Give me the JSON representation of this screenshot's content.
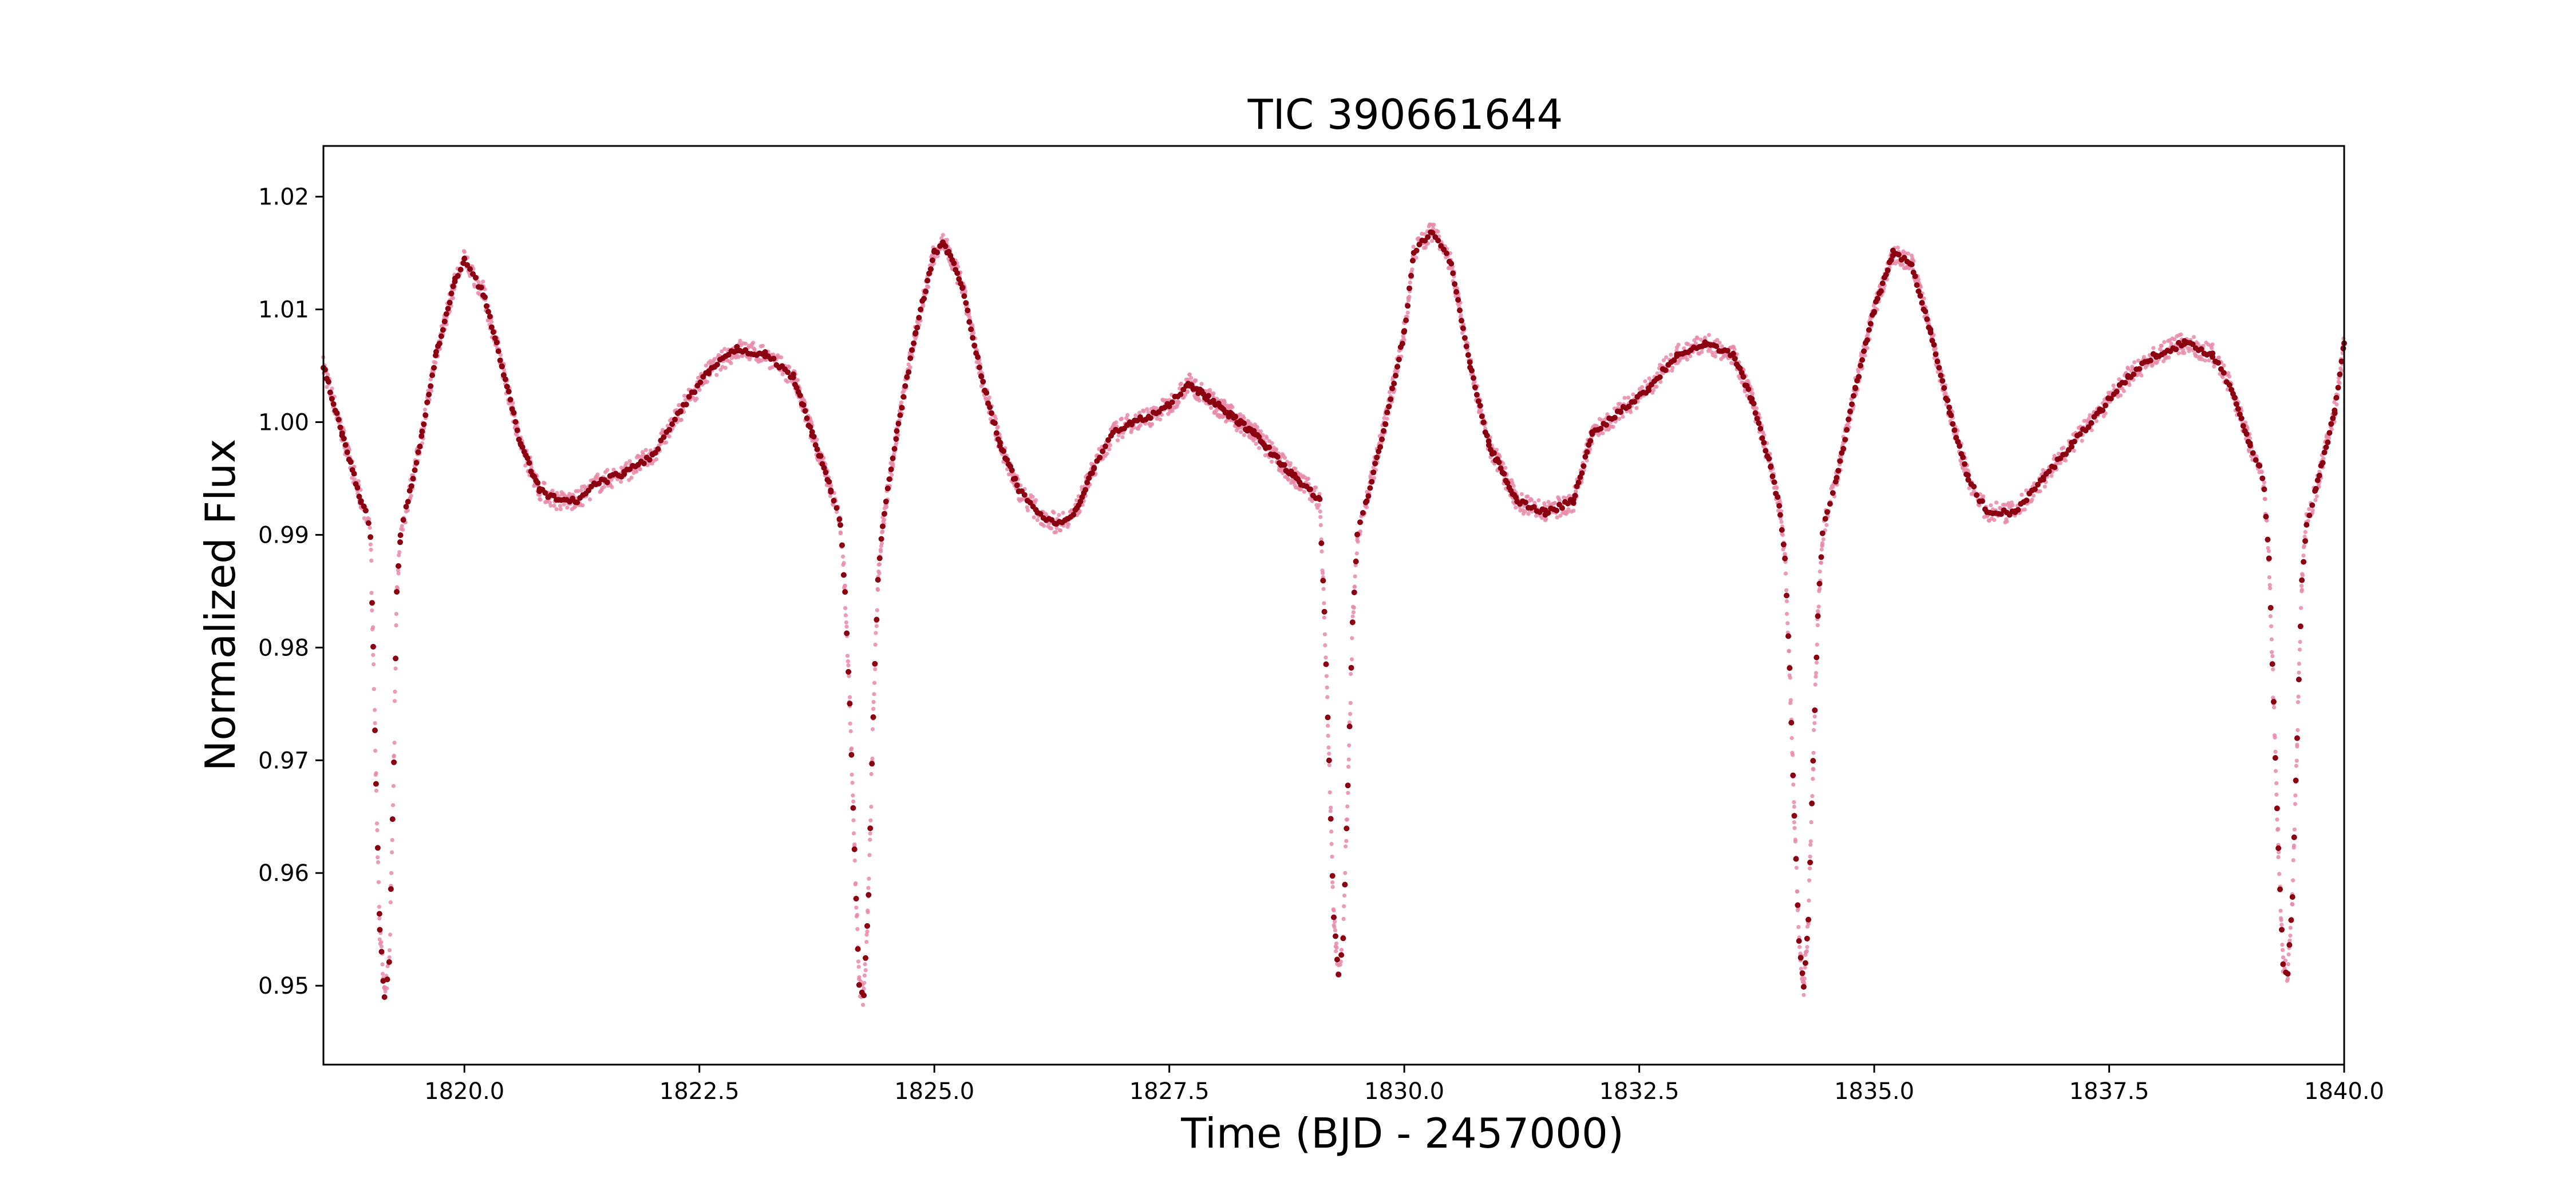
{
  "chart_data": {
    "type": "scatter",
    "title": "TIC 390661644",
    "xlabel": "Time (BJD - 2457000)",
    "ylabel": "Normalized Flux",
    "xlim": [
      1818.5,
      1840.0
    ],
    "ylim": [
      0.943,
      1.0245
    ],
    "xticks": [
      1820.0,
      1822.5,
      1825.0,
      1827.5,
      1830.0,
      1832.5,
      1835.0,
      1837.5,
      1840.0
    ],
    "xtick_labels": [
      "1820.0",
      "1822.5",
      "1825.0",
      "1827.5",
      "1830.0",
      "1832.5",
      "1835.0",
      "1837.5",
      "1840.0"
    ],
    "yticks": [
      0.95,
      0.96,
      0.97,
      0.98,
      0.99,
      1.0,
      1.01,
      1.02
    ],
    "ytick_labels": [
      "0.95",
      "0.96",
      "0.97",
      "0.98",
      "0.99",
      "1.00",
      "1.01",
      "1.02"
    ],
    "grid": false,
    "colors": {
      "raw": "#e88aa8",
      "binned": "#8b0010",
      "axes": "#000000"
    },
    "series": [
      {
        "x": [
          1818.5,
          1818.7,
          1818.9,
          1818.95,
          1819.0,
          1819.03,
          1819.06,
          1819.1,
          1819.15,
          1819.2,
          1819.25,
          1819.28,
          1819.32,
          1819.4,
          1819.55,
          1819.7,
          1819.9,
          1820.0,
          1820.2,
          1820.4,
          1820.6,
          1820.8,
          1821.0,
          1821.2,
          1821.4,
          1821.7,
          1822.0,
          1822.3,
          1822.6,
          1822.9,
          1823.2,
          1823.5,
          1823.7,
          1823.9,
          1824.0,
          1824.05,
          1824.1,
          1824.15,
          1824.2,
          1824.25,
          1824.3,
          1824.35,
          1824.4,
          1824.45,
          1824.6,
          1824.8,
          1825.0,
          1825.1,
          1825.3,
          1825.5,
          1825.7,
          1825.9,
          1826.1,
          1826.3,
          1826.5,
          1826.7,
          1826.9,
          1827.1,
          1827.3,
          1827.5,
          1827.7,
          1828.4,
          1828.9,
          1829.0,
          1829.1,
          1829.15,
          1829.2,
          1829.25,
          1829.3,
          1829.35,
          1829.4,
          1829.45,
          1829.5,
          1829.6,
          1829.8,
          1830.0,
          1830.1,
          1830.3,
          1830.5,
          1830.7,
          1830.9,
          1831.2,
          1831.5,
          1831.8,
          1832.0,
          1832.3,
          1832.6,
          1832.9,
          1833.2,
          1833.5,
          1833.7,
          1833.9,
          1834.0,
          1834.05,
          1834.1,
          1834.15,
          1834.2,
          1834.25,
          1834.3,
          1834.35,
          1834.4,
          1834.45,
          1834.5,
          1834.6,
          1834.8,
          1835.0,
          1835.2,
          1835.4,
          1835.6,
          1835.8,
          1836.0,
          1836.2,
          1836.5,
          1836.8,
          1837.1,
          1837.4,
          1837.7,
          1838.0,
          1838.3,
          1838.6,
          1838.8,
          1839.0,
          1839.1,
          1839.15,
          1839.2,
          1839.25,
          1839.3,
          1839.35,
          1839.4,
          1839.45,
          1839.5,
          1839.55,
          1839.6,
          1839.7,
          1839.9,
          1840.0
        ],
        "y": [
          1.005,
          0.999,
          0.993,
          0.992,
          0.99,
          0.98,
          0.968,
          0.955,
          0.949,
          0.952,
          0.97,
          0.985,
          0.99,
          0.993,
          0.999,
          1.006,
          1.0125,
          1.0145,
          1.0115,
          1.005,
          0.998,
          0.994,
          0.993,
          0.993,
          0.9945,
          0.9955,
          0.997,
          1.001,
          1.0045,
          1.0065,
          1.006,
          1.004,
          0.999,
          0.994,
          0.991,
          0.985,
          0.975,
          0.962,
          0.95,
          0.949,
          0.958,
          0.974,
          0.986,
          0.991,
          0.999,
          1.008,
          1.015,
          1.016,
          1.012,
          1.004,
          0.998,
          0.994,
          0.992,
          0.991,
          0.992,
          0.996,
          0.999,
          1.0,
          1.0005,
          1.0015,
          1.0035,
          0.999,
          0.9945,
          0.994,
          0.993,
          0.983,
          0.97,
          0.956,
          0.951,
          0.954,
          0.968,
          0.982,
          0.99,
          0.993,
          1.0,
          1.008,
          1.015,
          1.017,
          1.014,
          1.005,
          0.998,
          0.993,
          0.992,
          0.993,
          0.999,
          1.001,
          1.003,
          1.006,
          1.007,
          1.006,
          1.002,
          0.996,
          0.992,
          0.988,
          0.978,
          0.965,
          0.954,
          0.95,
          0.956,
          0.97,
          0.983,
          0.99,
          0.992,
          0.995,
          1.003,
          1.01,
          1.015,
          1.014,
          1.008,
          1.001,
          0.995,
          0.992,
          0.992,
          0.995,
          0.998,
          1.001,
          1.004,
          1.006,
          1.007,
          1.006,
          1.003,
          0.998,
          0.996,
          0.994,
          0.988,
          0.975,
          0.962,
          0.952,
          0.951,
          0.958,
          0.972,
          0.986,
          0.991,
          0.994,
          1.001,
          1.007
        ]
      }
    ]
  }
}
